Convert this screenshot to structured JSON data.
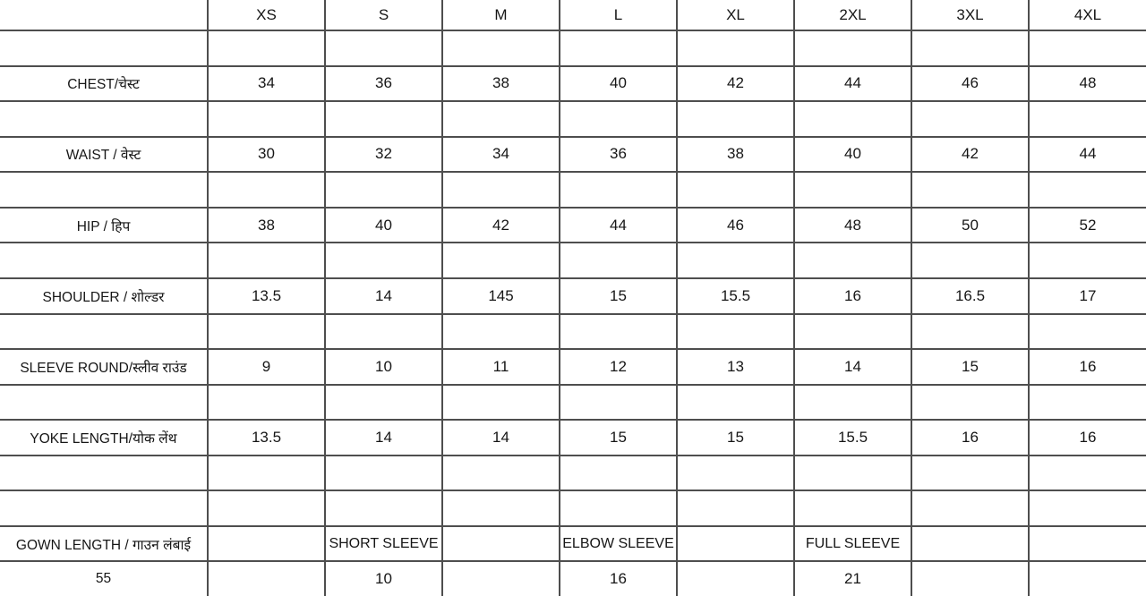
{
  "page": {
    "background_color": "#ffffff",
    "grid_line_color": "#4e4e4e",
    "text_color": "#161616"
  },
  "table": {
    "title": "garment-size-chart",
    "columns": [
      "",
      "XS",
      "S",
      "M",
      "L",
      "XL",
      "2XL",
      "3XL",
      "4XL"
    ],
    "rows": [
      [
        "",
        "",
        "",
        "",
        "",
        "",
        "",
        "",
        ""
      ],
      [
        "CHEST/चेस्ट",
        "34",
        "36",
        "38",
        "40",
        "42",
        "44",
        "46",
        "48"
      ],
      [
        "",
        "",
        "",
        "",
        "",
        "",
        "",
        "",
        ""
      ],
      [
        "WAIST / वेस्ट",
        "30",
        "32",
        "34",
        "36",
        "38",
        "40",
        "42",
        "44"
      ],
      [
        "",
        "",
        "",
        "",
        "",
        "",
        "",
        "",
        ""
      ],
      [
        "HIP / हिप",
        "38",
        "40",
        "42",
        "44",
        "46",
        "48",
        "50",
        "52"
      ],
      [
        "",
        "",
        "",
        "",
        "",
        "",
        "",
        "",
        ""
      ],
      [
        "SHOULDER / शोल्डर",
        "13.5",
        "14",
        "145",
        "15",
        "15.5",
        "16",
        "16.5",
        "17"
      ],
      [
        "",
        "",
        "",
        "",
        "",
        "",
        "",
        "",
        ""
      ],
      [
        "SLEEVE ROUND/स्लीव राउंड",
        "9",
        "10",
        "11",
        "12",
        "13",
        "14",
        "15",
        "16"
      ],
      [
        "",
        "",
        "",
        "",
        "",
        "",
        "",
        "",
        ""
      ],
      [
        "YOKE LENGTH/योक लेंथ",
        "13.5",
        "14",
        "14",
        "15",
        "15",
        "15.5",
        "16",
        "16"
      ],
      [
        "",
        "",
        "",
        "",
        "",
        "",
        "",
        "",
        ""
      ],
      [
        "",
        "",
        "",
        "",
        "",
        "",
        "",
        "",
        ""
      ],
      [
        "GOWN LENGTH / गाउन लंबाई",
        "",
        "SHORT SLEEVE",
        "",
        "ELBOW SLEEVE",
        "",
        "FULL SLEEVE",
        "",
        ""
      ],
      [
        "55",
        "",
        "10",
        "",
        "16",
        "",
        "21",
        "",
        ""
      ]
    ],
    "sleeve_type_row_index": 14,
    "measurement_row_labels": [
      "CHEST/चेस्ट",
      "WAIST / वेस्ट",
      "HIP / हिप",
      "SHOULDER / शोल्डर",
      "SLEEVE ROUND/स्लीव राउंड",
      "YOKE LENGTH/योक लेंथ",
      "GOWN LENGTH / गाउन लंबाई"
    ],
    "gown_length_options": [
      {
        "label": "SHORT SLEEVE",
        "value": "10"
      },
      {
        "label": "ELBOW SLEEVE",
        "value": "16"
      },
      {
        "label": "FULL SLEEVE",
        "value": "21"
      },
      {
        "label": "GOWN LENGTH",
        "value": "55"
      }
    ]
  }
}
